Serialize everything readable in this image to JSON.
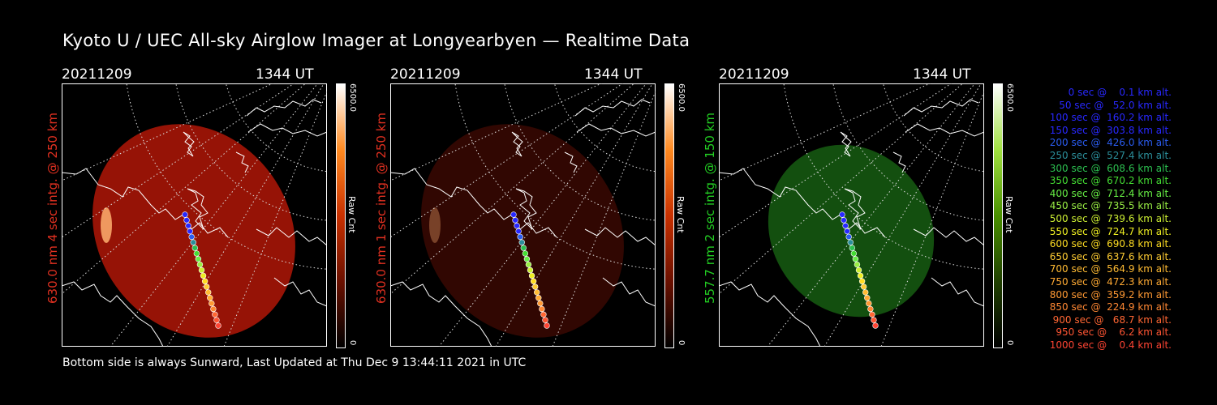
{
  "title": "Kyoto U / UEC All-sky Airglow Imager at Longyearbyen — Realtime Data",
  "footer": "Bottom side is always Sunward, Last Updated at Thu Dec  9 13:44:11 2021 in UTC",
  "panels": [
    {
      "date": "20211209",
      "time": "1344 UT",
      "label": "630.0 nm 4 sec intg. @ 250 km",
      "label_color": "#e03020",
      "cb_top": "6500.0",
      "cb_unit": "Raw Cnt",
      "cb_zero": "0",
      "cb_color": "#ff6a00",
      "glow": "#c01808",
      "glow_opacity": 0.78,
      "rx": 118,
      "ry": 138
    },
    {
      "date": "20211209",
      "time": "1344 UT",
      "label": "630.0 nm 1 sec intg. @ 250 km",
      "label_color": "#e03020",
      "cb_top": "6500.0",
      "cb_unit": "Raw Cnt",
      "cb_zero": "0",
      "cb_color": "#ff6a00",
      "glow": "#5a0c04",
      "glow_opacity": 0.55,
      "rx": 118,
      "ry": 138
    },
    {
      "date": "20211209",
      "time": "1344 UT",
      "label": "557.7 nm 2 sec intg. @ 150 km",
      "label_color": "#22cc22",
      "cb_top": "6500.0",
      "cb_unit": "Raw Cnt",
      "cb_zero": "0",
      "cb_color": "#66cc00",
      "glow": "#1a6a14",
      "glow_opacity": 0.75,
      "rx": 98,
      "ry": 110
    }
  ],
  "legend": [
    {
      "text": "   0 sec @    0.1 km alt.",
      "color": "#2828ff"
    },
    {
      "text": "  50 sec @   52.0 km alt.",
      "color": "#2828ff"
    },
    {
      "text": " 100 sec @  160.2 km alt.",
      "color": "#2828ff"
    },
    {
      "text": " 150 sec @  303.8 km alt.",
      "color": "#2828ff"
    },
    {
      "text": " 200 sec @  426.0 km alt.",
      "color": "#2a5cf0"
    },
    {
      "text": " 250 sec @  527.4 km alt.",
      "color": "#2b8e9a"
    },
    {
      "text": " 300 sec @  608.6 km alt.",
      "color": "#2cc050"
    },
    {
      "text": " 350 sec @  670.2 km alt.",
      "color": "#44dd33"
    },
    {
      "text": " 400 sec @  712.4 km alt.",
      "color": "#66ee44"
    },
    {
      "text": " 450 sec @  735.5 km alt.",
      "color": "#99ee44"
    },
    {
      "text": " 500 sec @  739.6 km alt.",
      "color": "#ccee33"
    },
    {
      "text": " 550 sec @  724.7 km alt.",
      "color": "#eeee22"
    },
    {
      "text": " 600 sec @  690.8 km alt.",
      "color": "#ffdd22"
    },
    {
      "text": " 650 sec @  637.6 km alt.",
      "color": "#ffcc33"
    },
    {
      "text": " 700 sec @  564.9 km alt.",
      "color": "#ffbb33"
    },
    {
      "text": " 750 sec @  472.3 km alt.",
      "color": "#ffaa33"
    },
    {
      "text": " 800 sec @  359.2 km alt.",
      "color": "#ff9933"
    },
    {
      "text": " 850 sec @  224.9 km alt.",
      "color": "#ff8833"
    },
    {
      "text": " 900 sec @   68.7 km alt.",
      "color": "#ff6633"
    },
    {
      "text": " 950 sec @    6.2 km alt.",
      "color": "#ff5533"
    },
    {
      "text": "1000 sec @    0.4 km alt.",
      "color": "#ff4433"
    }
  ]
}
